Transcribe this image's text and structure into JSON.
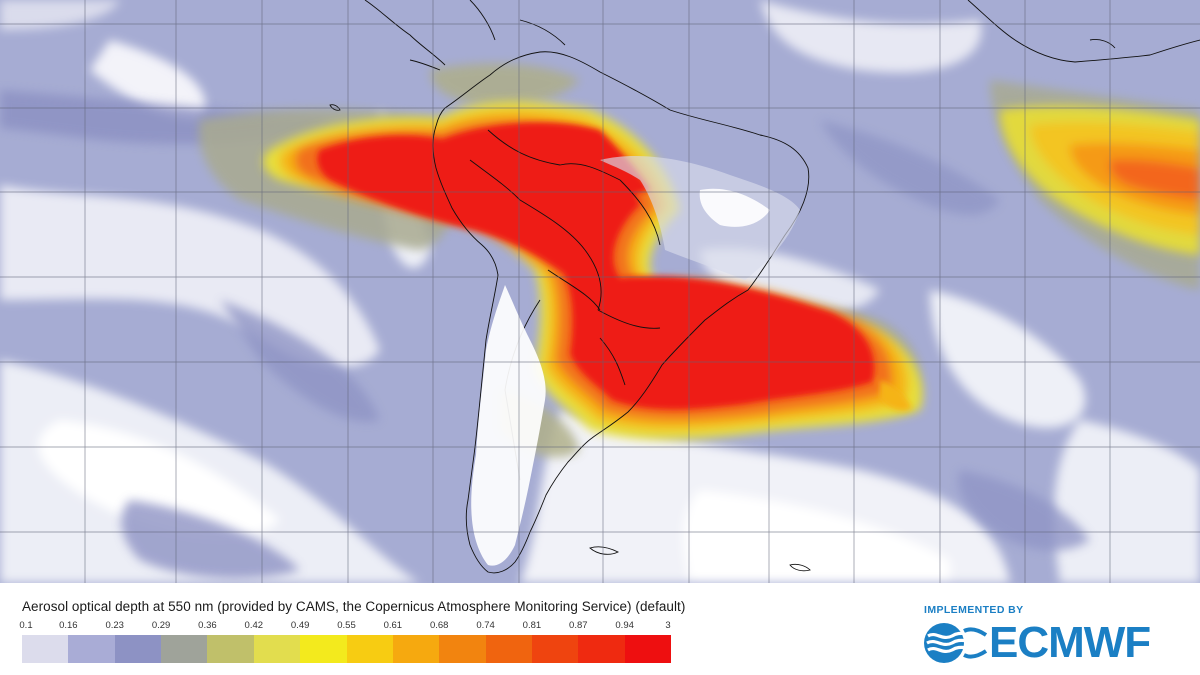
{
  "legend": {
    "title": "Aerosol optical depth at 550 nm (provided by CAMS, the Copernicus Atmosphere Monitoring Service) (default)",
    "ticks": [
      "0.1",
      "0.16",
      "0.23",
      "0.29",
      "0.36",
      "0.42",
      "0.49",
      "0.55",
      "0.61",
      "0.68",
      "0.74",
      "0.81",
      "0.87",
      "0.94",
      "3"
    ],
    "colors": [
      "#dcdcec",
      "#a9acd6",
      "#8d92c4",
      "#9fa39a",
      "#c0c06a",
      "#e2dd4e",
      "#f3ea1d",
      "#f7cc12",
      "#f6a90f",
      "#f2840f",
      "#f0640f",
      "#ef440f",
      "#ef2a10",
      "#ee0f10"
    ]
  },
  "branding": {
    "implemented_by": "IMPLEMENTED BY",
    "logo_text": "ECMWF",
    "brand_color": "#1b7fc4"
  },
  "map": {
    "ocean_base_color": "#a6acd3",
    "grid_color": "#5f6377",
    "coastline_color": "#111111",
    "land_color": "#ffffff"
  }
}
